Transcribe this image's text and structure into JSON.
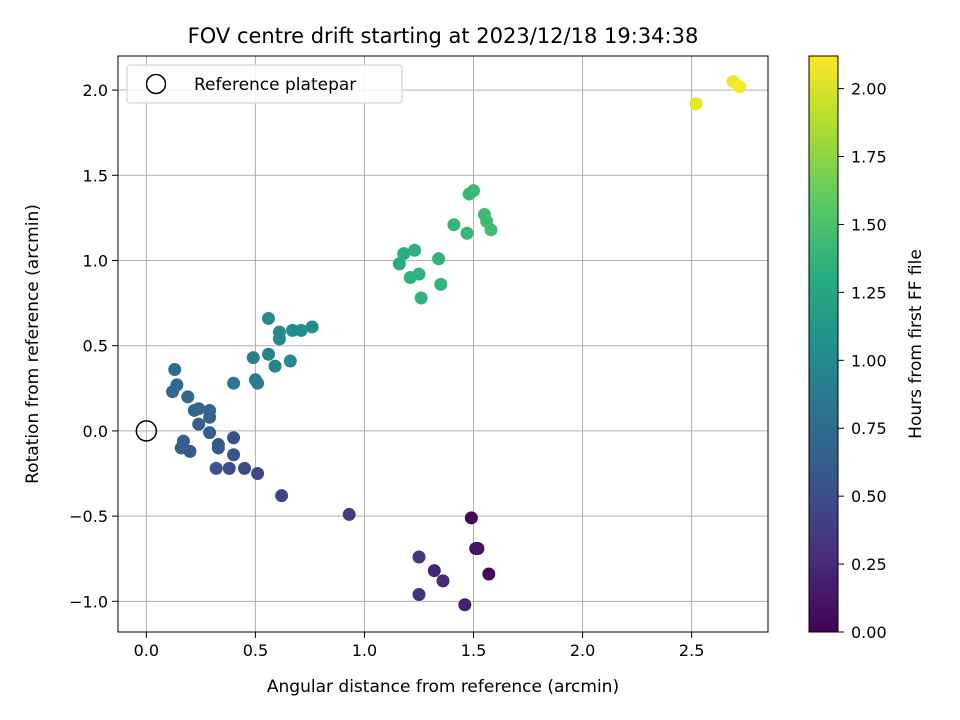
{
  "chart_data": {
    "type": "scatter",
    "title": "FOV centre drift starting at 2023/12/18 19:34:38",
    "xlabel": "Angular distance from reference (arcmin)",
    "ylabel": "Rotation from reference (arcmin)",
    "colorbar_label": "Hours from first FF file",
    "xlim": [
      -0.13,
      2.85
    ],
    "ylim": [
      -1.18,
      2.2
    ],
    "colorbar_range": [
      0.0,
      2.12
    ],
    "x_ticks": [
      0.0,
      0.5,
      1.0,
      1.5,
      2.0,
      2.5
    ],
    "x_tick_labels": [
      "0.0",
      "0.5",
      "1.0",
      "1.5",
      "2.0",
      "2.5"
    ],
    "y_ticks": [
      -1.0,
      -0.5,
      0.0,
      0.5,
      1.0,
      1.5,
      2.0
    ],
    "y_tick_labels": [
      "−1.0",
      "−0.5",
      "0.0",
      "0.5",
      "1.0",
      "1.5",
      "2.0"
    ],
    "colorbar_ticks": [
      0.0,
      0.25,
      0.5,
      0.75,
      1.0,
      1.25,
      1.5,
      1.75,
      2.0
    ],
    "colorbar_tick_labels": [
      "0.00",
      "0.25",
      "0.50",
      "0.75",
      "1.00",
      "1.25",
      "1.50",
      "1.75",
      "2.00"
    ],
    "colormap": "viridis",
    "grid": true,
    "legend": {
      "placement": "upper-left",
      "entries": [
        "Reference platepar"
      ]
    },
    "reference_point": {
      "x": 0.0,
      "y": 0.0,
      "label": "Reference platepar"
    },
    "points": [
      {
        "x": 1.49,
        "y": -0.51,
        "t": 0.02
      },
      {
        "x": 1.57,
        "y": -0.84,
        "t": 0.04
      },
      {
        "x": 1.52,
        "y": -0.69,
        "t": 0.07
      },
      {
        "x": 1.51,
        "y": -0.69,
        "t": 0.12
      },
      {
        "x": 1.46,
        "y": -1.02,
        "t": 0.18
      },
      {
        "x": 1.32,
        "y": -0.82,
        "t": 0.22
      },
      {
        "x": 1.36,
        "y": -0.88,
        "t": 0.26
      },
      {
        "x": 1.25,
        "y": -0.96,
        "t": 0.3
      },
      {
        "x": 1.25,
        "y": -0.74,
        "t": 0.34
      },
      {
        "x": 0.93,
        "y": -0.49,
        "t": 0.38
      },
      {
        "x": 0.62,
        "y": -0.38,
        "t": 0.42
      },
      {
        "x": 0.51,
        "y": -0.25,
        "t": 0.45
      },
      {
        "x": 0.45,
        "y": -0.22,
        "t": 0.48
      },
      {
        "x": 0.38,
        "y": -0.22,
        "t": 0.5
      },
      {
        "x": 0.4,
        "y": -0.04,
        "t": 0.52
      },
      {
        "x": 0.4,
        "y": -0.14,
        "t": 0.54
      },
      {
        "x": 0.32,
        "y": -0.22,
        "t": 0.55
      },
      {
        "x": 0.33,
        "y": -0.08,
        "t": 0.57
      },
      {
        "x": 0.33,
        "y": -0.1,
        "t": 0.58
      },
      {
        "x": 0.2,
        "y": -0.12,
        "t": 0.6
      },
      {
        "x": 0.16,
        "y": -0.1,
        "t": 0.61
      },
      {
        "x": 0.17,
        "y": -0.06,
        "t": 0.62
      },
      {
        "x": 0.29,
        "y": -0.01,
        "t": 0.64
      },
      {
        "x": 0.24,
        "y": 0.04,
        "t": 0.66
      },
      {
        "x": 0.29,
        "y": 0.08,
        "t": 0.67
      },
      {
        "x": 0.29,
        "y": 0.12,
        "t": 0.68
      },
      {
        "x": 0.24,
        "y": 0.13,
        "t": 0.69
      },
      {
        "x": 0.22,
        "y": 0.12,
        "t": 0.7
      },
      {
        "x": 0.19,
        "y": 0.2,
        "t": 0.71
      },
      {
        "x": 0.12,
        "y": 0.23,
        "t": 0.72
      },
      {
        "x": 0.14,
        "y": 0.27,
        "t": 0.73
      },
      {
        "x": 0.13,
        "y": 0.36,
        "t": 0.74
      },
      {
        "x": 0.4,
        "y": 0.28,
        "t": 0.83
      },
      {
        "x": 0.5,
        "y": 0.3,
        "t": 0.86
      },
      {
        "x": 0.51,
        "y": 0.28,
        "t": 0.88
      },
      {
        "x": 0.49,
        "y": 0.43,
        "t": 0.9
      },
      {
        "x": 0.56,
        "y": 0.45,
        "t": 0.93
      },
      {
        "x": 0.59,
        "y": 0.38,
        "t": 0.95
      },
      {
        "x": 0.66,
        "y": 0.41,
        "t": 0.98
      },
      {
        "x": 0.61,
        "y": 0.54,
        "t": 1.0
      },
      {
        "x": 0.61,
        "y": 0.58,
        "t": 1.01
      },
      {
        "x": 0.56,
        "y": 0.66,
        "t": 1.02
      },
      {
        "x": 0.67,
        "y": 0.59,
        "t": 1.03
      },
      {
        "x": 0.71,
        "y": 0.59,
        "t": 1.04
      },
      {
        "x": 0.76,
        "y": 0.61,
        "t": 1.05
      },
      {
        "x": 1.16,
        "y": 0.98,
        "t": 1.32
      },
      {
        "x": 1.18,
        "y": 1.04,
        "t": 1.33
      },
      {
        "x": 1.23,
        "y": 1.06,
        "t": 1.34
      },
      {
        "x": 1.21,
        "y": 0.9,
        "t": 1.35
      },
      {
        "x": 1.25,
        "y": 0.92,
        "t": 1.36
      },
      {
        "x": 1.26,
        "y": 0.78,
        "t": 1.37
      },
      {
        "x": 1.34,
        "y": 1.01,
        "t": 1.38
      },
      {
        "x": 1.35,
        "y": 0.86,
        "t": 1.38
      },
      {
        "x": 1.41,
        "y": 1.21,
        "t": 1.39
      },
      {
        "x": 1.47,
        "y": 1.16,
        "t": 1.4
      },
      {
        "x": 1.48,
        "y": 1.39,
        "t": 1.41
      },
      {
        "x": 1.5,
        "y": 1.41,
        "t": 1.42
      },
      {
        "x": 1.55,
        "y": 1.27,
        "t": 1.43
      },
      {
        "x": 1.56,
        "y": 1.23,
        "t": 1.44
      },
      {
        "x": 1.58,
        "y": 1.18,
        "t": 1.45
      },
      {
        "x": 2.52,
        "y": 1.92,
        "t": 2.05
      },
      {
        "x": 2.69,
        "y": 2.05,
        "t": 2.08
      },
      {
        "x": 2.72,
        "y": 2.02,
        "t": 2.11
      }
    ]
  }
}
